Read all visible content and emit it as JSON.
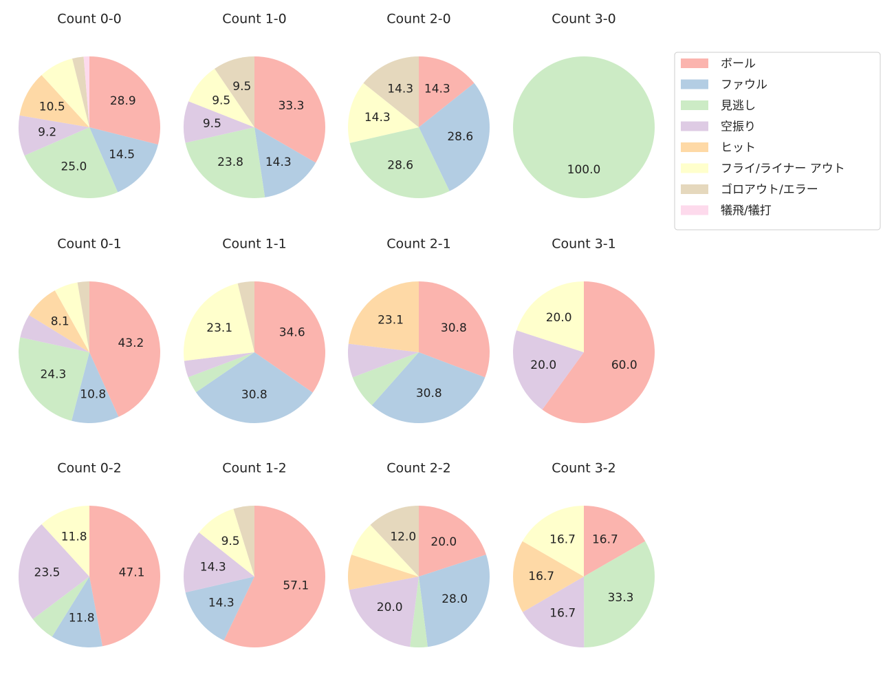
{
  "legend": {
    "entries": [
      "ボール",
      "ファウル",
      "見逃し",
      "空振り",
      "ヒット",
      "フライ/ライナー アウト",
      "ゴロアウト/エラー",
      "犠飛/犠打"
    ],
    "colors": [
      "#fbb4ae",
      "#b3cde3",
      "#ccebc5",
      "#decbe4",
      "#fed9a6",
      "#ffffcc",
      "#e5d8bd",
      "#fddaec"
    ],
    "loc": "upper right"
  },
  "chart_data": [
    {
      "type": "pie",
      "title": "Count 0-0",
      "values": [
        28.9,
        14.5,
        25.0,
        9.2,
        10.5,
        7.9,
        2.6,
        1.3
      ],
      "value_labels": [
        "28.9",
        "14.5",
        "25.0",
        "9.2",
        "10.5",
        null,
        null,
        null
      ]
    },
    {
      "type": "pie",
      "title": "Count 1-0",
      "values": [
        33.3,
        14.3,
        23.8,
        9.5,
        0,
        9.5,
        9.5,
        0
      ],
      "value_labels": [
        "33.3",
        "14.3",
        "23.8",
        "9.5",
        null,
        "9.5",
        "9.5",
        null
      ]
    },
    {
      "type": "pie",
      "title": "Count 2-0",
      "values": [
        14.3,
        28.6,
        28.6,
        0,
        0,
        14.3,
        14.3,
        0
      ],
      "value_labels": [
        "14.3",
        "28.6",
        "28.6",
        null,
        null,
        "14.3",
        "14.3",
        null
      ]
    },
    {
      "type": "pie",
      "title": "Count 3-0",
      "values": [
        0,
        0,
        100.0,
        0,
        0,
        0,
        0,
        0
      ],
      "value_labels": [
        null,
        null,
        "100.0",
        null,
        null,
        null,
        null,
        null
      ]
    },
    {
      "type": "pie",
      "title": "Count 0-1",
      "values": [
        43.2,
        10.8,
        24.3,
        5.4,
        8.1,
        5.4,
        2.7,
        0
      ],
      "value_labels": [
        "43.2",
        "10.8",
        "24.3",
        null,
        "8.1",
        null,
        null,
        null
      ]
    },
    {
      "type": "pie",
      "title": "Count 1-1",
      "values": [
        34.6,
        30.8,
        3.8,
        3.8,
        0,
        23.1,
        3.8,
        0
      ],
      "value_labels": [
        "34.6",
        "30.8",
        null,
        null,
        null,
        "23.1",
        null,
        null
      ]
    },
    {
      "type": "pie",
      "title": "Count 2-1",
      "values": [
        30.8,
        30.8,
        7.7,
        7.7,
        23.1,
        0,
        0,
        0
      ],
      "value_labels": [
        "30.8",
        "30.8",
        null,
        null,
        "23.1",
        null,
        null,
        null
      ]
    },
    {
      "type": "pie",
      "title": "Count 3-1",
      "values": [
        60.0,
        0,
        0,
        20.0,
        0,
        20.0,
        0,
        0
      ],
      "value_labels": [
        "60.0",
        null,
        null,
        "20.0",
        null,
        "20.0",
        null,
        null
      ]
    },
    {
      "type": "pie",
      "title": "Count 0-2",
      "values": [
        47.1,
        11.8,
        5.9,
        23.5,
        0,
        11.8,
        0,
        0
      ],
      "value_labels": [
        "47.1",
        "11.8",
        null,
        "23.5",
        null,
        "11.8",
        null,
        null
      ]
    },
    {
      "type": "pie",
      "title": "Count 1-2",
      "values": [
        57.1,
        14.3,
        0,
        14.3,
        0,
        9.5,
        4.8,
        0
      ],
      "value_labels": [
        "57.1",
        "14.3",
        null,
        "14.3",
        null,
        "9.5",
        null,
        null
      ]
    },
    {
      "type": "pie",
      "title": "Count 2-2",
      "values": [
        20.0,
        28.0,
        4.0,
        20.0,
        8.0,
        8.0,
        12.0,
        0
      ],
      "value_labels": [
        "20.0",
        "28.0",
        null,
        "20.0",
        null,
        null,
        "12.0",
        null
      ]
    },
    {
      "type": "pie",
      "title": "Count 3-2",
      "values": [
        16.7,
        0,
        33.3,
        16.7,
        16.7,
        16.7,
        0,
        0
      ],
      "value_labels": [
        "16.7",
        null,
        "33.3",
        "16.7",
        "16.7",
        "16.7",
        null,
        null
      ]
    }
  ]
}
